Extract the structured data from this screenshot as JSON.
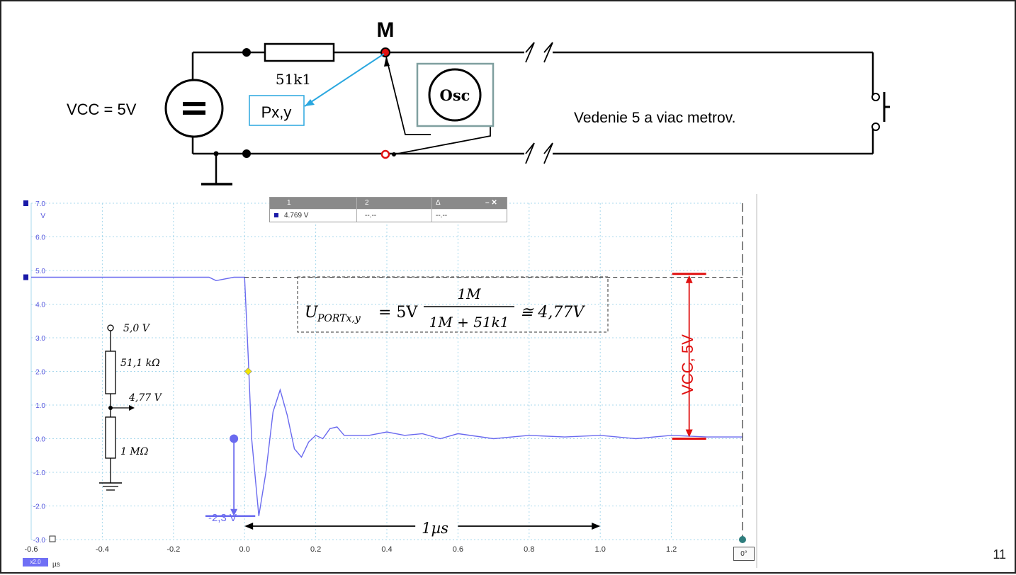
{
  "schematic": {
    "node_label": "M",
    "resistor_label": "51k1",
    "source_label": "VCC = 5V",
    "probe_label": "Px,y",
    "scope_label": "Osc",
    "cable_label": "Vedenie 5 a viac metrov."
  },
  "scope": {
    "y_unit": "V",
    "x_unit": "µs",
    "zoom_badge": "x2.0",
    "y_ticks": [
      "7.0",
      "6.0",
      "5.0",
      "4.0",
      "3.0",
      "2.0",
      "1.0",
      "0.0",
      "-1.0",
      "-2.0",
      "-3.0"
    ],
    "x_ticks": [
      "-0.6",
      "-0.4",
      "-0.2",
      "0.0",
      "0.2",
      "0.4",
      "0.6",
      "0.8",
      "1.0",
      "1.2"
    ],
    "angle_readout": "0°",
    "cursor_panel": {
      "col1": "1",
      "col2": "2",
      "col3": "Δ",
      "val1": "4.769 V",
      "val2": "--.--",
      "val3": "--.--",
      "controls": "– ✕"
    }
  },
  "annotations": {
    "equation_lhs": "U",
    "equation_sub": "PORTx,y",
    "equation_eq": "= 5V",
    "equation_num": "1M",
    "equation_den": "1M + 51k1",
    "equation_result": "≅ 4,77V",
    "divider_top": "5,0 V",
    "divider_r1": "51,1 kΩ",
    "divider_mid": "4,77 V",
    "divider_r2": "1 MΩ",
    "undershoot": "-2,3 V",
    "duration": "1µs",
    "vcc_span": "VCC, 5V"
  },
  "page_number": "11",
  "colors": {
    "trace": "#6a6aef",
    "grid": "#a8d8ec",
    "red": "#e01010",
    "probe_arrow": "#2aa7df",
    "scope_frame": "#7f9f9f"
  },
  "chart_data": {
    "type": "line",
    "title": "",
    "xlabel": "µs",
    "ylabel": "V",
    "xlim": [
      -0.6,
      1.4
    ],
    "ylim": [
      -3.0,
      7.0
    ],
    "series": [
      {
        "x": [
          -0.6,
          -0.1,
          -0.08,
          -0.03,
          0.0,
          0.01,
          0.02,
          0.04,
          0.06,
          0.08,
          0.1,
          0.12,
          0.14,
          0.16,
          0.18,
          0.2,
          0.22,
          0.24,
          0.26,
          0.28,
          0.3,
          0.35,
          0.4,
          0.45,
          0.5,
          0.55,
          0.6,
          0.7,
          0.8,
          0.9,
          1.0,
          1.1,
          1.2,
          1.3,
          1.4
        ],
        "y": [
          4.8,
          4.8,
          4.7,
          4.8,
          4.8,
          2.5,
          0.0,
          -2.3,
          -1.0,
          0.8,
          1.45,
          0.7,
          -0.3,
          -0.55,
          -0.1,
          0.1,
          0.0,
          0.3,
          0.35,
          0.1,
          0.1,
          0.1,
          0.2,
          0.1,
          0.15,
          0.0,
          0.15,
          0.0,
          0.1,
          0.05,
          0.1,
          0.0,
          0.1,
          0.05,
          0.05
        ]
      }
    ]
  }
}
